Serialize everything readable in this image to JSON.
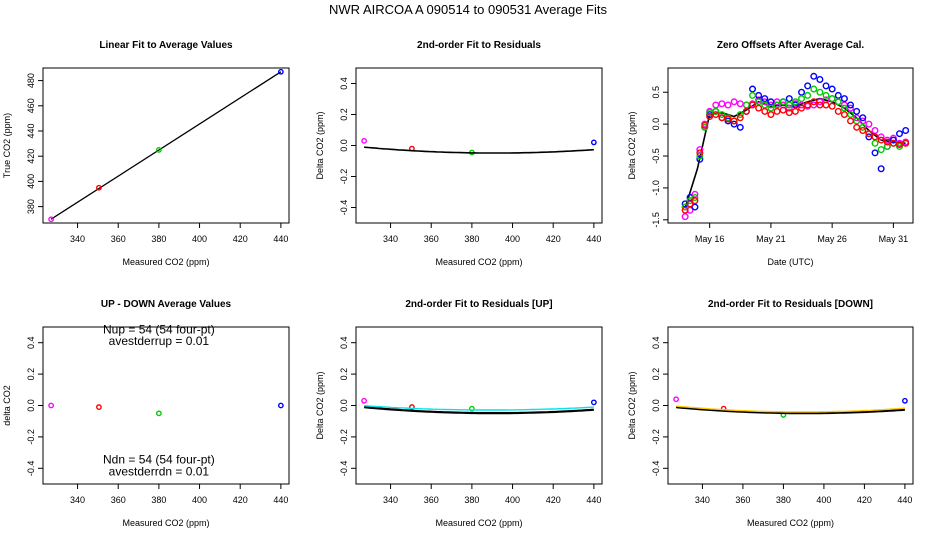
{
  "figure": {
    "title": "NWR   AIRCOA A   090514 to 090531   Average Fits"
  },
  "chart_data": [
    {
      "id": "p1",
      "type": "scatter",
      "title": "Linear Fit to Average Values",
      "xlabel": "Measured CO2 (ppm)",
      "ylabel": "True CO2 (ppm)",
      "xlim": [
        323,
        444
      ],
      "ylim": [
        367,
        490
      ],
      "xticks": [
        340,
        360,
        380,
        400,
        420,
        440
      ],
      "yticks": [
        380,
        400,
        420,
        440,
        460,
        480
      ],
      "series": [
        {
          "color": "#ff00ff",
          "x": [
            327
          ],
          "y": [
            370
          ]
        },
        {
          "color": "#ff0000",
          "x": [
            350.5
          ],
          "y": [
            395
          ]
        },
        {
          "color": "#00cc00",
          "x": [
            380
          ],
          "y": [
            425
          ]
        },
        {
          "color": "#0000ff",
          "x": [
            440
          ],
          "y": [
            487
          ]
        }
      ],
      "fit_lines": [
        {
          "color": "#000000",
          "x": [
            327,
            440
          ],
          "y": [
            370,
            487
          ]
        }
      ]
    },
    {
      "id": "p2",
      "type": "scatter",
      "title": "2nd-order Fit to Residuals",
      "xlabel": "Measured CO2 (ppm)",
      "ylabel": "Delta CO2 (ppm)",
      "xlim": [
        323,
        444
      ],
      "ylim": [
        -0.5,
        0.5
      ],
      "xticks": [
        340,
        360,
        380,
        400,
        420,
        440
      ],
      "yticks": [
        -0.4,
        -0.2,
        0.0,
        0.2,
        0.4
      ],
      "series": [
        {
          "color": "#ff00ff",
          "x": [
            327
          ],
          "y": [
            0.03
          ]
        },
        {
          "color": "#ff0000",
          "x": [
            350.5
          ],
          "y": [
            -0.02
          ]
        },
        {
          "color": "#00cc00",
          "x": [
            380
          ],
          "y": [
            -0.045
          ]
        },
        {
          "color": "#0000ff",
          "x": [
            440
          ],
          "y": [
            0.02
          ]
        }
      ],
      "fit_curves": [
        {
          "color": "#000000",
          "width": 1.6,
          "a": 9.2e-06,
          "b": -0.0072,
          "c": 1.36,
          "x_range": [
            327,
            440
          ]
        }
      ]
    },
    {
      "id": "p3",
      "type": "scatter",
      "title": "Zero Offsets After Average Cal.",
      "xlabel": "Date (UTC)",
      "ylabel": "Delta CO2 (ppm)",
      "x_unit": "day of May 2009",
      "xlim": [
        12.6,
        32.6
      ],
      "ylim": [
        -1.55,
        0.88
      ],
      "xtick_values": [
        16,
        21,
        26,
        31
      ],
      "xtick_labels": [
        "May 16",
        "May 21",
        "May 26",
        "May 31"
      ],
      "yticks": [
        -1.5,
        -1.0,
        -0.5,
        0.0,
        0.5
      ],
      "series": [
        {
          "color": "#ff00ff",
          "x": [
            14.0,
            14.4,
            14.8,
            15.2,
            15.6,
            16.0,
            16.5,
            17.0,
            17.5,
            18.0,
            18.5,
            19.0,
            19.5,
            20.0,
            20.5,
            21.0,
            21.5,
            22.0,
            22.5,
            23.0,
            23.5,
            24.0,
            24.5,
            25.0,
            25.5,
            26.0,
            26.5,
            27.0,
            27.5,
            28.0,
            28.5,
            29.0,
            29.5,
            30.0,
            30.5,
            31.0,
            31.5,
            32.0
          ],
          "y": [
            -1.45,
            -1.35,
            -1.1,
            -0.4,
            0.0,
            0.2,
            0.3,
            0.32,
            0.3,
            0.35,
            0.32,
            0.3,
            0.32,
            0.38,
            0.35,
            0.3,
            0.35,
            0.3,
            0.25,
            0.32,
            0.3,
            0.28,
            0.3,
            0.35,
            0.38,
            0.4,
            0.35,
            0.3,
            0.25,
            0.1,
            0.05,
            0.0,
            -0.1,
            -0.2,
            -0.25,
            -0.22,
            -0.3,
            -0.28
          ]
        },
        {
          "color": "#0000ff",
          "x": [
            14.0,
            14.4,
            14.8,
            15.2,
            15.6,
            16.0,
            16.5,
            17.0,
            17.5,
            18.0,
            18.5,
            19.0,
            19.5,
            20.0,
            20.5,
            21.0,
            21.5,
            22.0,
            22.5,
            23.0,
            23.5,
            24.0,
            24.5,
            25.0,
            25.5,
            26.0,
            26.5,
            27.0,
            27.5,
            28.0,
            28.5,
            29.0,
            29.5,
            30.0,
            30.5,
            31.0,
            31.5,
            32.0
          ],
          "y": [
            -1.25,
            -1.15,
            -1.3,
            -0.55,
            -0.05,
            0.15,
            0.2,
            0.1,
            0.05,
            0.0,
            -0.05,
            0.2,
            0.55,
            0.45,
            0.4,
            0.35,
            0.3,
            0.35,
            0.4,
            0.3,
            0.5,
            0.6,
            0.75,
            0.7,
            0.6,
            0.55,
            0.45,
            0.4,
            0.3,
            0.2,
            0.1,
            -0.2,
            -0.45,
            -0.7,
            -0.35,
            -0.25,
            -0.15,
            -0.1
          ]
        },
        {
          "color": "#00cc00",
          "x": [
            14.0,
            14.4,
            14.8,
            15.2,
            15.6,
            16.0,
            16.5,
            17.0,
            17.5,
            18.0,
            18.5,
            19.0,
            19.5,
            20.0,
            20.5,
            21.0,
            21.5,
            22.0,
            22.5,
            23.0,
            23.5,
            24.0,
            24.5,
            25.0,
            25.5,
            26.0,
            26.5,
            27.0,
            27.5,
            28.0,
            28.5,
            29.0,
            29.5,
            30.0,
            30.5,
            31.0,
            31.5,
            32.0
          ],
          "y": [
            -1.3,
            -1.2,
            -1.15,
            -0.5,
            -0.05,
            0.18,
            0.2,
            0.15,
            0.1,
            0.05,
            0.15,
            0.3,
            0.45,
            0.35,
            0.3,
            0.25,
            0.3,
            0.35,
            0.3,
            0.35,
            0.4,
            0.45,
            0.55,
            0.5,
            0.45,
            0.4,
            0.35,
            0.25,
            0.15,
            0.05,
            -0.05,
            -0.15,
            -0.3,
            -0.4,
            -0.35,
            -0.3,
            -0.35,
            -0.3
          ]
        },
        {
          "color": "#ff0000",
          "x": [
            14.0,
            14.4,
            14.8,
            15.2,
            15.6,
            16.0,
            16.5,
            17.0,
            17.5,
            18.0,
            18.5,
            19.0,
            19.5,
            20.0,
            20.5,
            21.0,
            21.5,
            22.0,
            22.5,
            23.0,
            23.5,
            24.0,
            24.5,
            25.0,
            25.5,
            26.0,
            26.5,
            27.0,
            27.5,
            28.0,
            28.5,
            29.0,
            29.5,
            30.0,
            30.5,
            31.0,
            31.5,
            32.0
          ],
          "y": [
            -1.35,
            -1.25,
            -1.2,
            -0.45,
            -0.02,
            0.12,
            0.15,
            0.1,
            0.08,
            0.05,
            0.1,
            0.2,
            0.3,
            0.25,
            0.2,
            0.15,
            0.2,
            0.22,
            0.18,
            0.2,
            0.25,
            0.3,
            0.35,
            0.3,
            0.3,
            0.28,
            0.2,
            0.15,
            0.05,
            -0.05,
            -0.1,
            -0.15,
            -0.2,
            -0.25,
            -0.28,
            -0.3,
            -0.32,
            -0.3
          ]
        }
      ],
      "fit_lines": [
        {
          "color": "#000000",
          "x": [
            14.0,
            15.0,
            16.0,
            17.0,
            18.0,
            19.0,
            20.0,
            21.0,
            22.0,
            23.0,
            24.0,
            25.0,
            26.0,
            27.0,
            28.0,
            29.0,
            30.0,
            31.0,
            32.0
          ],
          "y": [
            -1.32,
            -0.7,
            0.15,
            0.18,
            0.12,
            0.22,
            0.35,
            0.28,
            0.3,
            0.28,
            0.35,
            0.4,
            0.35,
            0.25,
            0.1,
            -0.1,
            -0.25,
            -0.28,
            -0.3
          ]
        }
      ]
    },
    {
      "id": "p4",
      "type": "scatter",
      "title": "UP - DOWN Average Values",
      "xlabel": "Measured CO2 (ppm)",
      "ylabel": "delta CO2",
      "xlim": [
        323,
        444
      ],
      "ylim": [
        -0.5,
        0.5
      ],
      "xticks": [
        340,
        360,
        380,
        400,
        420,
        440
      ],
      "yticks": [
        -0.4,
        -0.2,
        0.0,
        0.2,
        0.4
      ],
      "series": [
        {
          "color": "#ff00ff",
          "x": [
            327
          ],
          "y": [
            0.0
          ]
        },
        {
          "color": "#ff0000",
          "x": [
            350.5
          ],
          "y": [
            -0.01
          ]
        },
        {
          "color": "#00cc00",
          "x": [
            380
          ],
          "y": [
            -0.05
          ]
        },
        {
          "color": "#0000ff",
          "x": [
            440
          ],
          "y": [
            0.0
          ]
        }
      ],
      "annotations": [
        {
          "text": "Nup = 54 (54 four-pt)",
          "x": 380,
          "y": 0.46
        },
        {
          "text": "avestderrup =  0.01",
          "x": 380,
          "y": 0.385
        },
        {
          "text": "Ndn = 54 (54 four-pt)",
          "x": 380,
          "y": -0.37
        },
        {
          "text": "avestderrdn =  0.01",
          "x": 380,
          "y": -0.445
        }
      ]
    },
    {
      "id": "p5",
      "type": "scatter",
      "title": "2nd-order Fit to Residuals [UP]",
      "xlabel": "Measured CO2 (ppm)",
      "ylabel": "Delta CO2 (ppm)",
      "xlim": [
        323,
        444
      ],
      "ylim": [
        -0.5,
        0.5
      ],
      "xticks": [
        340,
        360,
        380,
        400,
        420,
        440
      ],
      "yticks": [
        -0.4,
        -0.2,
        0.0,
        0.2,
        0.4
      ],
      "series": [
        {
          "color": "#ff00ff",
          "x": [
            327
          ],
          "y": [
            0.03
          ]
        },
        {
          "color": "#ff0000",
          "x": [
            350.5
          ],
          "y": [
            -0.01
          ]
        },
        {
          "color": "#00cc00",
          "x": [
            380
          ],
          "y": [
            -0.02
          ]
        },
        {
          "color": "#0000ff",
          "x": [
            440
          ],
          "y": [
            0.02
          ]
        }
      ],
      "fit_curves": [
        {
          "color": "#000000",
          "width": 2.2,
          "a": 9.2e-06,
          "b": -0.0072,
          "c": 1.36,
          "x_range": [
            327,
            440
          ]
        },
        {
          "color": "#00e5ee",
          "width": 1.4,
          "a": 7.2e-06,
          "b": -0.0056,
          "c": 1.06,
          "x_range": [
            327,
            440
          ]
        }
      ]
    },
    {
      "id": "p6",
      "type": "scatter",
      "title": "2nd-order Fit to Residuals [DOWN]",
      "xlabel": "Measured CO2 (ppm)",
      "ylabel": "Delta CO2 (ppm)",
      "xlim": [
        323,
        444
      ],
      "ylim": [
        -0.5,
        0.5
      ],
      "xticks": [
        340,
        360,
        380,
        400,
        420,
        440
      ],
      "yticks": [
        -0.4,
        -0.2,
        0.0,
        0.2,
        0.4
      ],
      "series": [
        {
          "color": "#ff00ff",
          "x": [
            327
          ],
          "y": [
            0.04
          ]
        },
        {
          "color": "#ff0000",
          "x": [
            350.5
          ],
          "y": [
            -0.02
          ]
        },
        {
          "color": "#00cc00",
          "x": [
            380
          ],
          "y": [
            -0.06
          ]
        },
        {
          "color": "#0000ff",
          "x": [
            440
          ],
          "y": [
            0.03
          ]
        }
      ],
      "fit_curves": [
        {
          "color": "#000000",
          "width": 2.2,
          "a": 9.2e-06,
          "b": -0.0072,
          "c": 1.36,
          "x_range": [
            327,
            440
          ]
        },
        {
          "color": "#ffc800",
          "width": 1.4,
          "a": 9.5e-06,
          "b": -0.0074,
          "c": 1.4,
          "x_range": [
            327,
            440
          ]
        }
      ]
    }
  ]
}
